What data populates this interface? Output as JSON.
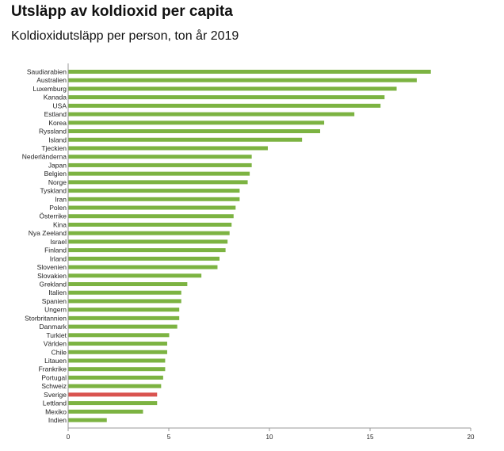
{
  "title": "Utsläpp av koldioxid per capita",
  "subtitle": "Koldioxidutsläpp per person, ton år 2019",
  "colors": {
    "default_bar": "#7cb342",
    "highlight_bar": "#d9534f",
    "axis": "#999999"
  },
  "chart_data": {
    "type": "bar",
    "orientation": "horizontal",
    "title": "Utsläpp av koldioxid per capita",
    "subtitle": "Koldioxidutsläpp per person, ton år 2019",
    "xlabel": "",
    "ylabel": "",
    "xlim": [
      0,
      20
    ],
    "xticks": [
      0,
      5,
      10,
      15,
      20
    ],
    "grid": false,
    "highlight": "Sverige",
    "categories": [
      "Saudiarabien",
      "Australien",
      "Luxemburg",
      "Kanada",
      "USA",
      "Estland",
      "Korea",
      "Ryssland",
      "Island",
      "Tjeckien",
      "Nederländerna",
      "Japan",
      "Belgien",
      "Norge",
      "Tyskland",
      "Iran",
      "Polen",
      "Österrike",
      "Kina",
      "Nya Zeeland",
      "Israel",
      "Finland",
      "Irland",
      "Slovenien",
      "Slovakien",
      "Grekland",
      "Italien",
      "Spanien",
      "Ungern",
      "Storbritannien",
      "Danmark",
      "Turkiet",
      "Världen",
      "Chile",
      "Litauen",
      "Frankrike",
      "Portugal",
      "Schweiz",
      "Sverige",
      "Lettland",
      "Mexiko",
      "Indien"
    ],
    "values": [
      18.0,
      17.3,
      16.3,
      15.7,
      15.5,
      14.2,
      12.7,
      12.5,
      11.6,
      9.9,
      9.1,
      9.1,
      9.0,
      8.9,
      8.5,
      8.5,
      8.3,
      8.2,
      8.1,
      8.0,
      7.9,
      7.8,
      7.5,
      7.4,
      6.6,
      5.9,
      5.6,
      5.6,
      5.5,
      5.5,
      5.4,
      5.0,
      4.9,
      4.9,
      4.8,
      4.8,
      4.7,
      4.6,
      4.4,
      4.4,
      3.7,
      1.9
    ]
  }
}
